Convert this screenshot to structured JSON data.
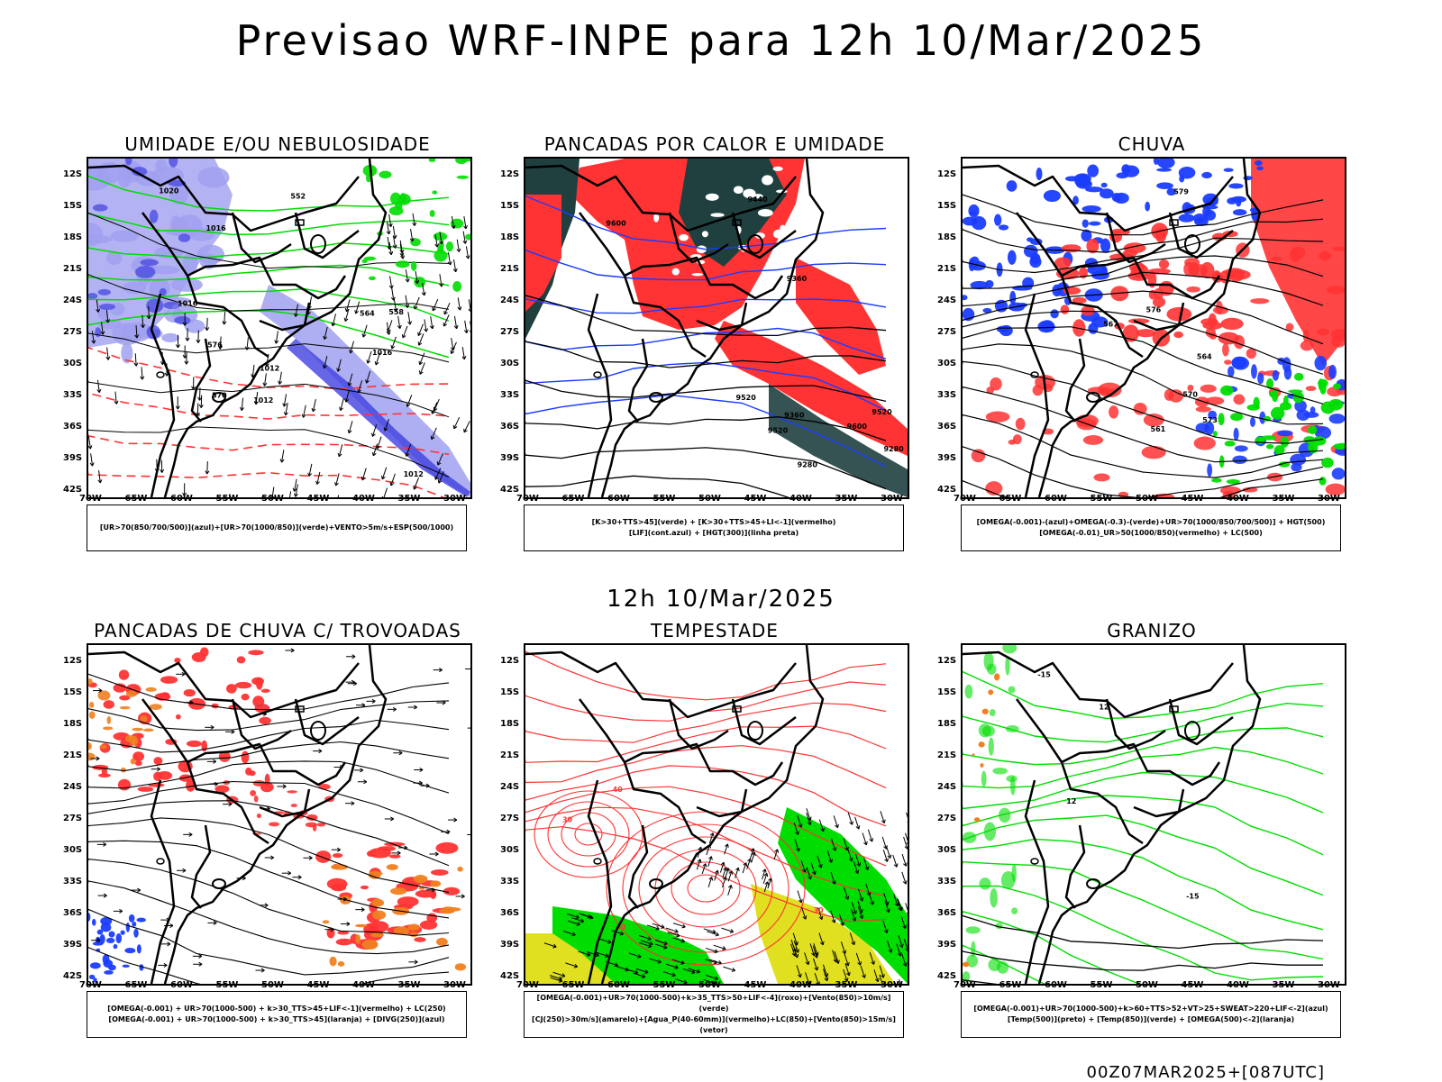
{
  "title": "Previsao WRF-INPE  para 12h 10/Mar/2025",
  "subtitle": "12h 10/Mar/2025",
  "footer": "00Z07MAR2025+[087UTC]",
  "axes": {
    "lat_labels": [
      "12S",
      "15S",
      "18S",
      "21S",
      "24S",
      "27S",
      "30S",
      "33S",
      "36S",
      "39S",
      "42S"
    ],
    "lon_labels": [
      "70W",
      "65W",
      "60W",
      "55W",
      "50W",
      "45W",
      "40W",
      "35W",
      "30W"
    ]
  },
  "colors": {
    "verde": "#00dd00",
    "vermelho": "#ff3333",
    "azul": "#1a3cff",
    "lilas": "#a0a0f0",
    "laranja": "#f08020",
    "amarelo": "#e0e020",
    "escuro": "#204040"
  },
  "panels": [
    {
      "title": "UMIDADE E/OU NEBULOSIDADE",
      "legend": [
        "[UR>70(850/700/500)](azul)+[UR>70(1000/850)](verde)+VENTO>5m/s+ESP(500/1000)"
      ],
      "contour_labels": [
        "1012",
        "1016",
        "1020",
        "1016",
        "1012",
        "1016",
        "1012",
        "576",
        "570",
        "564",
        "558",
        "552"
      ]
    },
    {
      "title": "PANCADAS POR CALOR E UMIDADE",
      "legend": [
        "[K>30+TTS>45](verde) + [K>30+TTS>45+LI<-1](vermelho)",
        "[LIF](cont.azul) + [HGT(300)](linha preta)"
      ],
      "contour_labels": [
        "9600",
        "9520",
        "9520",
        "9440",
        "9360",
        "9360",
        "9280",
        "9280",
        "9600",
        "9520"
      ]
    },
    {
      "title": "CHUVA",
      "legend": [
        "[OMEGA(-0.001)-(azul)+OMEGA(-0.3)-(verde)+UR>70(1000/850/700/500)] + HGT(500)",
        "[OMEGA(-0.01)_UR>50(1000/850)(vermelho) + LC(500)"
      ],
      "contour_labels": [
        "579",
        "576",
        "573",
        "570",
        "567",
        "564",
        "561"
      ]
    },
    {
      "title": "PANCADAS DE CHUVA C/ TROVOADAS",
      "legend": [
        "[OMEGA(-0.001) + UR>70(1000-500) + k>30_TTS>45+LIF<-1](vermelho) + LC(250)",
        "[OMEGA(-0.001) + UR>70(1000-500) + k>30_TTS>45](laranja) + [DIVG(250)](azul)"
      ],
      "contour_labels": []
    },
    {
      "title": "TEMPESTADE",
      "legend": [
        "[OMEGA(-0.001)+UR>70(1000-500)+k>35_TTS>50+LIF<-4](roxo)+[Vento(850)>10m/s](verde)",
        "[CJ(250)>30m/s](amarelo)+[Agua_P(40-60mm)](vermelho)+LC(850)+[Vento(850)>15m/s](vetor)"
      ],
      "contour_labels": [
        "40",
        "40",
        "30",
        "30"
      ]
    },
    {
      "title": "GRANIZO",
      "legend": [
        "[OMEGA(-0.001)+UR>70(1000-500)+k>60+TTS>52+VT>25+SWEAT>220+LIF<-2](azul)",
        "[Temp(500)](preto) + [Temp(850)](verde) + [OMEGA(500)<-2](laranja)"
      ],
      "contour_labels": [
        "-15",
        "-15",
        "12",
        "12"
      ]
    }
  ]
}
